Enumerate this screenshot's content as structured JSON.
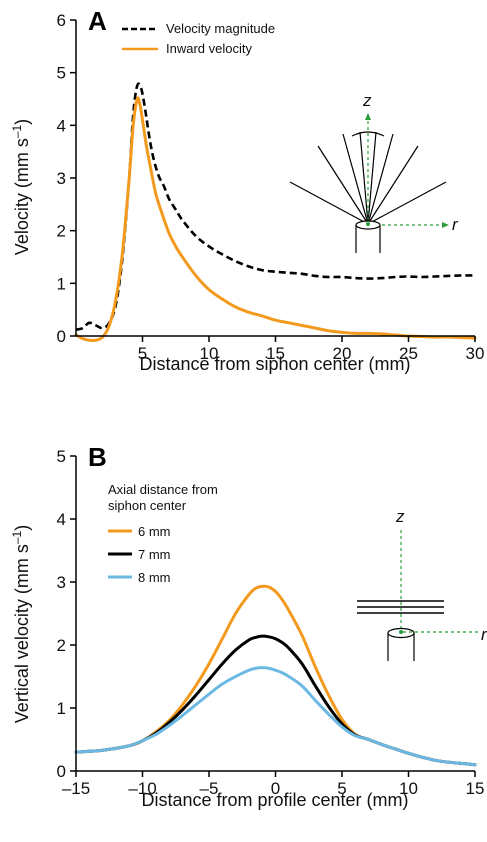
{
  "chart_data": [
    {
      "panel": "A",
      "type": "line",
      "xlabel": "Distance from siphon center (mm)",
      "ylabel_main": "Velocity (mm s",
      "ylabel_sup": "–1",
      "ylabel_tail": ")",
      "xlim": [
        0,
        30
      ],
      "ylim": [
        0,
        6
      ],
      "xticks": [
        5,
        10,
        15,
        20,
        25,
        30
      ],
      "yticks": [
        0,
        1,
        2,
        3,
        4,
        5,
        6
      ],
      "legend_position": "top-left",
      "series": [
        {
          "name": "Velocity magnitude",
          "color": "#000000",
          "style": "dashed",
          "x": [
            0,
            0.5,
            1.0,
            1.5,
            2.0,
            2.5,
            3.0,
            3.5,
            4.0,
            4.3,
            4.6,
            4.9,
            5.2,
            5.5,
            5.8,
            6.2,
            6.6,
            7.0,
            7.5,
            8.0,
            9.0,
            10.0,
            11.0,
            12.0,
            13.0,
            14.0,
            15.0,
            16.0,
            17.0,
            18.0,
            19.0,
            20.0,
            21.0,
            22.0,
            23.0,
            24.0,
            25.0,
            26.0,
            27.0,
            28.0,
            29.0,
            30.0
          ],
          "y": [
            0.12,
            0.15,
            0.25,
            0.2,
            0.15,
            0.25,
            0.6,
            1.5,
            3.0,
            4.2,
            4.75,
            4.7,
            4.3,
            3.8,
            3.4,
            3.05,
            2.85,
            2.6,
            2.4,
            2.2,
            1.9,
            1.7,
            1.55,
            1.42,
            1.32,
            1.25,
            1.22,
            1.2,
            1.18,
            1.14,
            1.12,
            1.12,
            1.1,
            1.09,
            1.1,
            1.12,
            1.13,
            1.12,
            1.13,
            1.14,
            1.15,
            1.15
          ]
        },
        {
          "name": "Inward velocity",
          "color": "#f39a1e",
          "style": "solid",
          "x": [
            0,
            0.5,
            1.0,
            1.5,
            2.0,
            2.5,
            3.0,
            3.5,
            4.0,
            4.3,
            4.6,
            4.8,
            5.0,
            5.3,
            5.6,
            6.0,
            6.5,
            7.0,
            7.5,
            8.0,
            9.0,
            10.0,
            11.0,
            12.0,
            13.0,
            14.0,
            15.0,
            16.0,
            17.0,
            18.0,
            19.0,
            20.0,
            21.0,
            22.0,
            23.0,
            24.0,
            25.0,
            26.0,
            27.0,
            28.0,
            29.0,
            30.0
          ],
          "y": [
            0.02,
            -0.05,
            -0.08,
            -0.08,
            -0.02,
            0.2,
            0.7,
            1.6,
            3.0,
            4.0,
            4.5,
            4.4,
            4.1,
            3.6,
            3.2,
            2.7,
            2.3,
            1.95,
            1.7,
            1.5,
            1.15,
            0.88,
            0.7,
            0.55,
            0.45,
            0.38,
            0.3,
            0.25,
            0.2,
            0.15,
            0.1,
            0.07,
            0.05,
            0.05,
            0.04,
            0.02,
            0.0,
            -0.01,
            -0.02,
            -0.02,
            -0.03,
            -0.04
          ]
        }
      ],
      "inset": {
        "z_label": "z",
        "r_label": "r"
      }
    },
    {
      "panel": "B",
      "type": "line",
      "xlabel": "Distance from profile center (mm)",
      "ylabel_main": "Vertical velocity (mm s",
      "ylabel_sup": "–1",
      "ylabel_tail": ")",
      "xlim": [
        -15,
        15
      ],
      "ylim": [
        0,
        5
      ],
      "xticks": [
        -15,
        -10,
        -5,
        0,
        5,
        10,
        15
      ],
      "xtick_labels": [
        "–15",
        "–10",
        "–5",
        "0",
        "5",
        "10",
        "15"
      ],
      "yticks": [
        0,
        1,
        2,
        3,
        4,
        5
      ],
      "legend_title_lines": [
        "Axial distance from",
        "siphon center"
      ],
      "legend_position": "top-left",
      "series": [
        {
          "name": "6 mm",
          "color": "#f39a1e",
          "x": [
            -15,
            -13,
            -11,
            -10,
            -9,
            -8,
            -7,
            -6,
            -5,
            -4,
            -3,
            -2,
            -1.5,
            -1,
            -0.5,
            0,
            0.5,
            1,
            2,
            3,
            4,
            5,
            6,
            7,
            8,
            9,
            10,
            11,
            12,
            13,
            14,
            15
          ],
          "y": [
            0.3,
            0.33,
            0.4,
            0.48,
            0.62,
            0.8,
            1.05,
            1.35,
            1.7,
            2.1,
            2.5,
            2.8,
            2.9,
            2.93,
            2.92,
            2.85,
            2.72,
            2.55,
            2.15,
            1.65,
            1.2,
            0.82,
            0.58,
            0.5,
            0.42,
            0.35,
            0.28,
            0.22,
            0.17,
            0.14,
            0.12,
            0.1
          ]
        },
        {
          "name": "7 mm",
          "color": "#000000",
          "x": [
            -15,
            -13,
            -11,
            -10,
            -9,
            -8,
            -7,
            -6,
            -5,
            -4,
            -3,
            -2,
            -1.5,
            -1,
            -0.5,
            0,
            0.5,
            1,
            2,
            3,
            4,
            5,
            6,
            7,
            8,
            9,
            10,
            11,
            12,
            13,
            14,
            15
          ],
          "y": [
            0.3,
            0.33,
            0.4,
            0.48,
            0.6,
            0.77,
            0.97,
            1.2,
            1.45,
            1.7,
            1.92,
            2.08,
            2.12,
            2.14,
            2.13,
            2.1,
            2.04,
            1.95,
            1.7,
            1.35,
            1.02,
            0.75,
            0.57,
            0.5,
            0.42,
            0.35,
            0.28,
            0.22,
            0.17,
            0.14,
            0.12,
            0.1
          ]
        },
        {
          "name": "8 mm",
          "color": "#6bb8e3",
          "x": [
            -15,
            -13,
            -11,
            -10,
            -9,
            -8,
            -7,
            -6,
            -5,
            -4,
            -3,
            -2,
            -1.5,
            -1,
            -0.5,
            0,
            0.5,
            1,
            2,
            3,
            4,
            5,
            6,
            7,
            8,
            9,
            10,
            11,
            12,
            13,
            14,
            15
          ],
          "y": [
            0.3,
            0.33,
            0.4,
            0.48,
            0.58,
            0.72,
            0.88,
            1.05,
            1.22,
            1.38,
            1.5,
            1.6,
            1.63,
            1.64,
            1.63,
            1.6,
            1.56,
            1.5,
            1.35,
            1.12,
            0.9,
            0.7,
            0.56,
            0.5,
            0.42,
            0.35,
            0.28,
            0.22,
            0.17,
            0.14,
            0.12,
            0.1
          ]
        }
      ],
      "inset": {
        "z_label": "z",
        "r_label": "r"
      }
    }
  ]
}
